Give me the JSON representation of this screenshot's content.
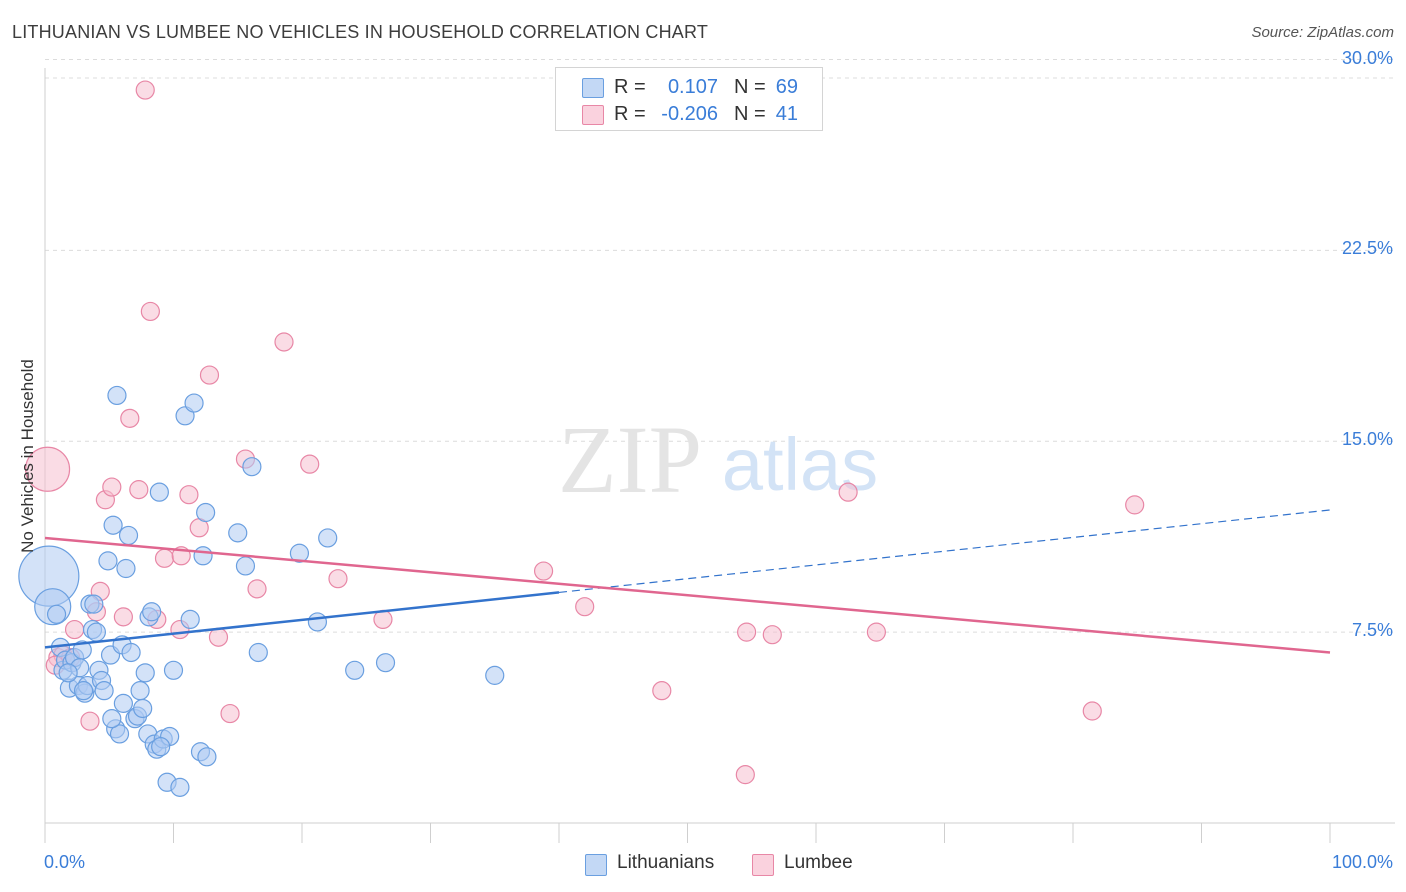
{
  "header": {
    "title": "LITHUANIAN VS LUMBEE NO VEHICLES IN HOUSEHOLD CORRELATION CHART",
    "source": "Source: ZipAtlas.com"
  },
  "watermark": {
    "zip": "ZIP",
    "atlas": "atlas"
  },
  "legend_top": {
    "rows": [
      {
        "r_label": "R =",
        "r_value": "0.107",
        "n_label": "N =",
        "n_value": "69"
      },
      {
        "r_label": "R =",
        "r_value": "-0.206",
        "n_label": "N =",
        "n_value": "41"
      }
    ]
  },
  "legend_bottom": {
    "items": [
      "Lithuanians",
      "Lumbee"
    ]
  },
  "colors": {
    "blue_fill": "#aecbf2",
    "blue_stroke": "#6a9fe0",
    "blue_line": "#3373cc",
    "pink_fill": "#f6bfd0",
    "pink_stroke": "#e887a6",
    "pink_line": "#e0668f",
    "tick_text": "#3a7dd8",
    "grid": "#dcdcdc"
  },
  "chart_data": {
    "type": "scatter",
    "title": "LITHUANIAN VS LUMBEE NO VEHICLES IN HOUSEHOLD CORRELATION CHART",
    "xlabel": "",
    "ylabel": "No Vehicles in Household",
    "x_ticks": [
      "0.0%",
      "100.0%"
    ],
    "y_ticks": [
      "7.5%",
      "15.0%",
      "22.5%",
      "30.0%"
    ],
    "xlim": [
      0,
      100
    ],
    "ylim": [
      0,
      30.8
    ],
    "grid": "horizontal dashed",
    "legend_placement": "top-center",
    "series": [
      {
        "name": "Lithuanians",
        "r": 0.107,
        "n": 69,
        "trend": {
          "x_start": 0,
          "y_start": 6.9,
          "x_solid_end": 40,
          "x_end": 100,
          "y_end": 12.3
        },
        "points": [
          [
            0.3,
            9.7
          ],
          [
            0.6,
            8.5
          ],
          [
            0.9,
            8.2
          ],
          [
            1.2,
            6.9
          ],
          [
            1.4,
            6.0
          ],
          [
            1.6,
            6.4
          ],
          [
            1.9,
            5.3
          ],
          [
            2.1,
            6.3
          ],
          [
            2.3,
            6.5
          ],
          [
            2.6,
            5.4
          ],
          [
            2.7,
            6.1
          ],
          [
            2.9,
            6.8
          ],
          [
            3.1,
            5.1
          ],
          [
            3.3,
            5.4
          ],
          [
            3.5,
            8.6
          ],
          [
            3.7,
            7.6
          ],
          [
            3.8,
            8.6
          ],
          [
            4.0,
            7.5
          ],
          [
            4.2,
            6.0
          ],
          [
            4.4,
            5.6
          ],
          [
            4.6,
            5.2
          ],
          [
            4.9,
            10.3
          ],
          [
            5.1,
            6.6
          ],
          [
            5.3,
            11.7
          ],
          [
            5.5,
            3.7
          ],
          [
            5.6,
            16.8
          ],
          [
            5.8,
            3.5
          ],
          [
            6.0,
            7.0
          ],
          [
            6.1,
            4.7
          ],
          [
            6.3,
            10.0
          ],
          [
            6.5,
            11.3
          ],
          [
            6.7,
            6.7
          ],
          [
            7.0,
            4.1
          ],
          [
            7.2,
            4.2
          ],
          [
            7.4,
            5.2
          ],
          [
            7.6,
            4.5
          ],
          [
            7.8,
            5.9
          ],
          [
            8.0,
            3.5
          ],
          [
            8.1,
            8.1
          ],
          [
            8.3,
            8.3
          ],
          [
            8.5,
            3.1
          ],
          [
            8.7,
            2.9
          ],
          [
            8.9,
            13.0
          ],
          [
            9.2,
            3.3
          ],
          [
            9.5,
            1.6
          ],
          [
            9.7,
            3.4
          ],
          [
            10.0,
            6.0
          ],
          [
            10.5,
            1.4
          ],
          [
            10.9,
            16.0
          ],
          [
            11.3,
            8.0
          ],
          [
            11.6,
            16.5
          ],
          [
            12.1,
            2.8
          ],
          [
            12.3,
            10.5
          ],
          [
            12.5,
            12.2
          ],
          [
            12.6,
            2.6
          ],
          [
            15.0,
            11.4
          ],
          [
            15.6,
            10.1
          ],
          [
            16.1,
            14.0
          ],
          [
            16.6,
            6.7
          ],
          [
            19.8,
            10.6
          ],
          [
            21.2,
            7.9
          ],
          [
            22.0,
            11.2
          ],
          [
            24.1,
            6.0
          ],
          [
            26.5,
            6.3
          ],
          [
            35.0,
            5.8
          ],
          [
            9.0,
            3.0
          ],
          [
            3.0,
            5.2
          ],
          [
            5.2,
            4.1
          ],
          [
            1.8,
            5.9
          ]
        ],
        "sizes": {
          "0": 30,
          "1": 18
        }
      },
      {
        "name": "Lumbee",
        "r": -0.206,
        "n": 41,
        "trend": {
          "x_start": 0,
          "y_start": 11.2,
          "x_end": 100,
          "y_end": 6.7
        },
        "points": [
          [
            0.2,
            13.9
          ],
          [
            1.0,
            6.5
          ],
          [
            1.4,
            6.6
          ],
          [
            2.3,
            7.6
          ],
          [
            3.5,
            4.0
          ],
          [
            4.0,
            8.3
          ],
          [
            4.3,
            9.1
          ],
          [
            4.7,
            12.7
          ],
          [
            5.2,
            13.2
          ],
          [
            6.1,
            8.1
          ],
          [
            6.6,
            15.9
          ],
          [
            7.3,
            13.1
          ],
          [
            7.8,
            28.8
          ],
          [
            8.2,
            20.1
          ],
          [
            8.7,
            8.0
          ],
          [
            9.3,
            10.4
          ],
          [
            10.5,
            7.6
          ],
          [
            10.6,
            10.5
          ],
          [
            11.2,
            12.9
          ],
          [
            12.0,
            11.6
          ],
          [
            12.8,
            17.6
          ],
          [
            13.5,
            7.3
          ],
          [
            14.4,
            4.3
          ],
          [
            15.6,
            14.3
          ],
          [
            16.5,
            9.2
          ],
          [
            18.6,
            18.9
          ],
          [
            20.6,
            14.1
          ],
          [
            22.8,
            9.6
          ],
          [
            26.3,
            8.0
          ],
          [
            38.8,
            9.9
          ],
          [
            42.0,
            8.5
          ],
          [
            48.0,
            5.2
          ],
          [
            54.5,
            1.9
          ],
          [
            54.6,
            7.5
          ],
          [
            56.6,
            7.4
          ],
          [
            62.5,
            13.0
          ],
          [
            64.7,
            7.5
          ],
          [
            81.5,
            4.4
          ],
          [
            84.8,
            12.5
          ],
          [
            2.0,
            6.5
          ],
          [
            0.8,
            6.2
          ]
        ],
        "sizes": {
          "0": 22
        }
      }
    ]
  }
}
